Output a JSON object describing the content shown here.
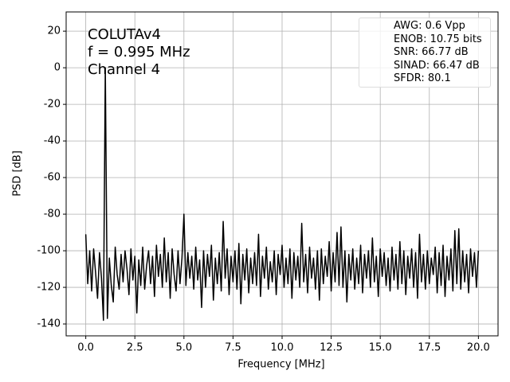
{
  "chart_data": {
    "type": "line",
    "annotation": [
      "COLUTAv4",
      "f = 0.995 MHz",
      "Channel 4"
    ],
    "xlabel": "Frequency [MHz]",
    "ylabel": "PSD [dB]",
    "x": [
      0,
      0.1,
      0.2,
      0.3,
      0.4,
      0.5,
      0.6,
      0.7,
      0.8,
      0.9,
      0.995,
      1.1,
      1.2,
      1.3,
      1.4,
      1.5,
      1.6,
      1.7,
      1.8,
      1.9,
      2.0,
      2.1,
      2.2,
      2.3,
      2.4,
      2.5,
      2.6,
      2.7,
      2.8,
      2.9,
      3.0,
      3.1,
      3.2,
      3.3,
      3.4,
      3.5,
      3.6,
      3.7,
      3.8,
      3.9,
      4.0,
      4.1,
      4.2,
      4.3,
      4.4,
      4.5,
      4.6,
      4.7,
      4.8,
      4.9,
      5.0,
      5.1,
      5.2,
      5.3,
      5.4,
      5.5,
      5.6,
      5.7,
      5.8,
      5.9,
      6.0,
      6.1,
      6.2,
      6.3,
      6.4,
      6.5,
      6.6,
      6.7,
      6.8,
      6.9,
      7.0,
      7.1,
      7.2,
      7.3,
      7.4,
      7.5,
      7.6,
      7.7,
      7.8,
      7.9,
      8.0,
      8.1,
      8.2,
      8.3,
      8.4,
      8.5,
      8.6,
      8.7,
      8.8,
      8.9,
      9.0,
      9.1,
      9.2,
      9.3,
      9.4,
      9.5,
      9.6,
      9.7,
      9.8,
      9.9,
      10.0,
      10.1,
      10.2,
      10.3,
      10.4,
      10.5,
      10.6,
      10.7,
      10.8,
      10.9,
      11.0,
      11.1,
      11.2,
      11.3,
      11.4,
      11.5,
      11.6,
      11.7,
      11.8,
      11.9,
      12.0,
      12.1,
      12.2,
      12.3,
      12.4,
      12.5,
      12.6,
      12.7,
      12.8,
      12.9,
      13.0,
      13.1,
      13.2,
      13.3,
      13.4,
      13.5,
      13.6,
      13.7,
      13.8,
      13.9,
      14.0,
      14.1,
      14.2,
      14.3,
      14.4,
      14.5,
      14.6,
      14.7,
      14.8,
      14.9,
      15.0,
      15.1,
      15.2,
      15.3,
      15.4,
      15.5,
      15.6,
      15.7,
      15.8,
      15.9,
      16.0,
      16.1,
      16.2,
      16.3,
      16.4,
      16.5,
      16.6,
      16.7,
      16.8,
      16.9,
      17.0,
      17.1,
      17.2,
      17.3,
      17.4,
      17.5,
      17.6,
      17.7,
      17.8,
      17.9,
      18.0,
      18.1,
      18.2,
      18.3,
      18.4,
      18.5,
      18.6,
      18.7,
      18.8,
      18.9,
      19.0,
      19.1,
      19.2,
      19.3,
      19.4,
      19.5,
      19.6,
      19.7,
      19.8,
      19.9,
      20.0
    ],
    "series": [
      {
        "name": "AWG: 0.6 Vpp\nENOB: 10.75 bits\nSNR: 66.77 dB\nSINAD: 66.47 dB\nSFDR: 80.1",
        "color": "#000000",
        "values": [
          -91,
          -118,
          -100,
          -122,
          -99,
          -112,
          -126,
          -101,
          -115,
          -138,
          0,
          -137,
          -104,
          -119,
          -128,
          -98,
          -113,
          -121,
          -102,
          -117,
          -100,
          -110,
          -124,
          -99,
          -116,
          -103,
          -134,
          -105,
          -119,
          -98,
          -121,
          -108,
          -100,
          -118,
          -103,
          -125,
          -97,
          -114,
          -102,
          -120,
          -93,
          -117,
          -101,
          -126,
          -99,
          -113,
          -122,
          -100,
          -118,
          -104,
          -80,
          -119,
          -101,
          -115,
          -103,
          -121,
          -98,
          -116,
          -105,
          -131,
          -100,
          -120,
          -102,
          -114,
          -97,
          -127,
          -104,
          -118,
          -101,
          -122,
          -84,
          -115,
          -99,
          -124,
          -103,
          -117,
          -100,
          -121,
          -96,
          -129,
          -102,
          -116,
          -99,
          -123,
          -104,
          -118,
          -101,
          -119,
          -91,
          -125,
          -103,
          -115,
          -98,
          -121,
          -106,
          -117,
          -100,
          -124,
          -102,
          -113,
          -97,
          -120,
          -104,
          -118,
          -99,
          -126,
          -101,
          -116,
          -103,
          -120,
          -85,
          -117,
          -102,
          -123,
          -98,
          -115,
          -104,
          -121,
          -100,
          -127,
          -99,
          -118,
          -103,
          -114,
          -95,
          -122,
          -101,
          -117,
          -90,
          -119,
          -87,
          -120,
          -100,
          -128,
          -102,
          -116,
          -99,
          -121,
          -104,
          -118,
          -97,
          -123,
          -102,
          -115,
          -100,
          -120,
          -93,
          -117,
          -103,
          -125,
          -99,
          -114,
          -101,
          -119,
          -104,
          -122,
          -98,
          -116,
          -102,
          -121,
          -95,
          -118,
          -100,
          -124,
          -103,
          -115,
          -99,
          -120,
          -101,
          -126,
          -91,
          -117,
          -102,
          -121,
          -100,
          -118,
          -104,
          -113,
          -98,
          -123,
          -101,
          -119,
          -97,
          -125,
          -103,
          -116,
          -99,
          -122,
          -89,
          -118,
          -88,
          -121,
          -100,
          -117,
          -102,
          -123,
          -99,
          -114,
          -101,
          -120,
          -100
        ]
      }
    ],
    "xlim": [
      -1,
      21
    ],
    "ylim": [
      -146.5,
      30.5
    ],
    "xticks": [
      {
        "value": 0,
        "label": "0.0"
      },
      2.5,
      {
        "value": 5,
        "label": "5.0"
      },
      7.5,
      {
        "value": 10,
        "label": "10.0"
      },
      12.5,
      {
        "value": 15,
        "label": "15.0"
      },
      17.5,
      {
        "value": 20,
        "label": "20.0"
      }
    ],
    "yticks": [
      20,
      0,
      -20,
      -40,
      -60,
      -80,
      -100,
      -120,
      -140
    ],
    "grid": true,
    "legend": "upper right"
  }
}
